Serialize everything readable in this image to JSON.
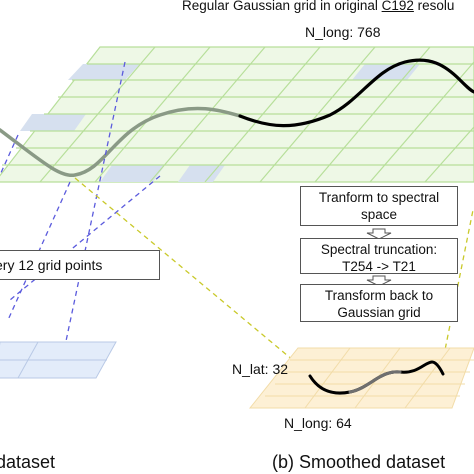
{
  "title": {
    "prefix": "Regular Gaussian grid in original ",
    "underlined": "C192",
    "suffix": " resolu"
  },
  "top_grid": {
    "n_long": "N_long: 768"
  },
  "steps": [
    "Tranform to spectral space",
    "Spectral truncation: T254 -> T21",
    "Transform back to Gaussian grid"
  ],
  "subsample_note": "ery 12 grid points",
  "smooth_grid": {
    "n_lat": "N_lat: 32",
    "n_long": "N_long: 64"
  },
  "captions": {
    "left": "dataset",
    "right": "(b) Smoothed dataset"
  },
  "colors": {
    "grid_green": "#b7df9a",
    "grid_fill": "#eef8e6",
    "blue_cells": "#d6e0ef",
    "blue_arrow": "#5b5bdd",
    "yellow_arrow": "#c9c92a",
    "orange_fill": "#fdf0d5",
    "blue_plane": "#e3ecfa"
  }
}
